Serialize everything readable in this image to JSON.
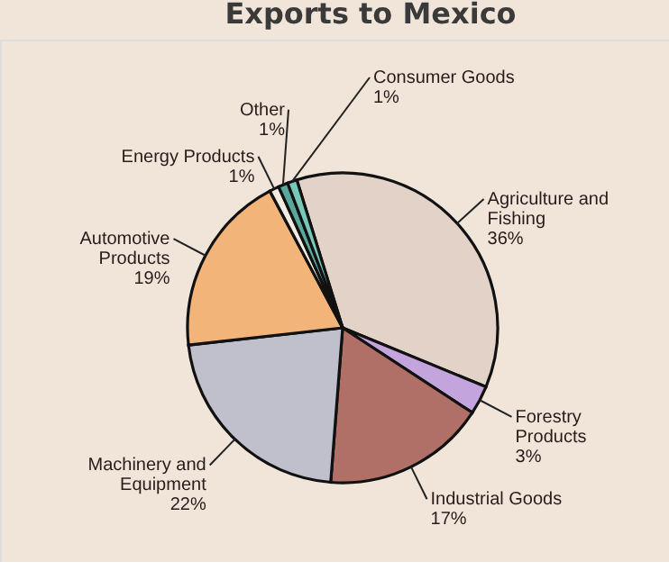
{
  "chart_data": {
    "type": "pie",
    "title": "Exports to Mexico",
    "categories": [
      "Agriculture and Fishing",
      "Forestry Products",
      "Industrial Goods",
      "Machinery and Equipment",
      "Automotive Products",
      "Energy Products",
      "Other",
      "Consumer Goods"
    ],
    "values": [
      36,
      3,
      17,
      22,
      19,
      1,
      1,
      1
    ],
    "value_labels": [
      "36%",
      "3%",
      "17%",
      "22%",
      "19%",
      "1%",
      "1%",
      "1%"
    ],
    "colors": [
      "#e2d2c8",
      "#c4a4dc",
      "#b07068",
      "#c0c0cc",
      "#f2b478",
      "#f2ebe2",
      "#5aa89c",
      "#78c8b8"
    ]
  }
}
